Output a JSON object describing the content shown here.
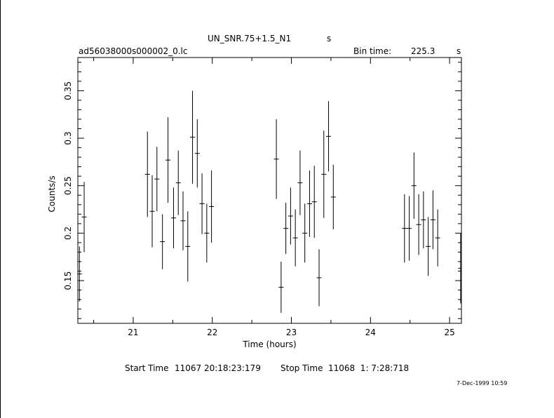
{
  "header": {
    "title": "UN_SNR.75+1.5_N1",
    "title_suffix": "s",
    "file_label": "ad56038000s000002_0.lc",
    "bin_time_label": "Bin time:",
    "bin_time_value": "225.3",
    "bin_time_unit": "s"
  },
  "footer": {
    "start_label": "Start Time",
    "start_value": "11067 20:18:23:179",
    "stop_label": "Stop Time",
    "stop_value": "11068  1: 7:28:718",
    "date_stamp": "7-Dec-1999 10:59"
  },
  "chart_data": {
    "type": "scatter",
    "xlabel": "Time (hours)",
    "ylabel": "Counts/s",
    "xlim": [
      20.3,
      25.15
    ],
    "ylim": [
      0.105,
      0.385
    ],
    "x_ticks": [
      21,
      22,
      23,
      24,
      25
    ],
    "y_ticks": [
      0.15,
      0.2,
      0.25,
      0.3,
      0.35
    ],
    "grid": false,
    "series": [
      {
        "x_err": 0.031,
        "points": [
          {
            "x": 20.32,
            "y": 0.157,
            "yerr": 0.029
          },
          {
            "x": 20.38,
            "y": 0.217,
            "yerr": 0.037
          },
          {
            "x": 21.18,
            "y": 0.262,
            "yerr": 0.045
          },
          {
            "x": 21.24,
            "y": 0.223,
            "yerr": 0.038
          },
          {
            "x": 21.3,
            "y": 0.257,
            "yerr": 0.034
          },
          {
            "x": 21.37,
            "y": 0.191,
            "yerr": 0.029
          },
          {
            "x": 21.44,
            "y": 0.277,
            "yerr": 0.045
          },
          {
            "x": 21.51,
            "y": 0.216,
            "yerr": 0.032
          },
          {
            "x": 21.57,
            "y": 0.253,
            "yerr": 0.034
          },
          {
            "x": 21.63,
            "y": 0.213,
            "yerr": 0.031
          },
          {
            "x": 21.69,
            "y": 0.186,
            "yerr": 0.037
          },
          {
            "x": 21.75,
            "y": 0.301,
            "yerr": 0.049
          },
          {
            "x": 21.81,
            "y": 0.284,
            "yerr": 0.036
          },
          {
            "x": 21.87,
            "y": 0.231,
            "yerr": 0.032
          },
          {
            "x": 21.93,
            "y": 0.2,
            "yerr": 0.031
          },
          {
            "x": 21.99,
            "y": 0.228,
            "yerr": 0.038
          },
          {
            "x": 22.81,
            "y": 0.278,
            "yerr": 0.042
          },
          {
            "x": 22.87,
            "y": 0.143,
            "yerr": 0.027
          },
          {
            "x": 22.93,
            "y": 0.205,
            "yerr": 0.027
          },
          {
            "x": 22.99,
            "y": 0.218,
            "yerr": 0.03
          },
          {
            "x": 23.05,
            "y": 0.195,
            "yerr": 0.03
          },
          {
            "x": 23.11,
            "y": 0.253,
            "yerr": 0.034
          },
          {
            "x": 23.17,
            "y": 0.2,
            "yerr": 0.031
          },
          {
            "x": 23.23,
            "y": 0.231,
            "yerr": 0.035
          },
          {
            "x": 23.29,
            "y": 0.233,
            "yerr": 0.038
          },
          {
            "x": 23.35,
            "y": 0.153,
            "yerr": 0.03
          },
          {
            "x": 23.41,
            "y": 0.262,
            "yerr": 0.046
          },
          {
            "x": 23.47,
            "y": 0.302,
            "yerr": 0.037
          },
          {
            "x": 23.53,
            "y": 0.238,
            "yerr": 0.034
          },
          {
            "x": 24.43,
            "y": 0.205,
            "yerr": 0.036
          },
          {
            "x": 24.49,
            "y": 0.205,
            "yerr": 0.034
          },
          {
            "x": 24.55,
            "y": 0.25,
            "yerr": 0.035
          },
          {
            "x": 24.61,
            "y": 0.209,
            "yerr": 0.032
          },
          {
            "x": 24.67,
            "y": 0.214,
            "yerr": 0.03
          },
          {
            "x": 24.73,
            "y": 0.186,
            "yerr": 0.031
          },
          {
            "x": 24.79,
            "y": 0.214,
            "yerr": 0.031
          },
          {
            "x": 24.85,
            "y": 0.195,
            "yerr": 0.03
          },
          {
            "x": 25.14,
            "y": 0.163,
            "yerr": 0.037
          }
        ]
      }
    ]
  }
}
